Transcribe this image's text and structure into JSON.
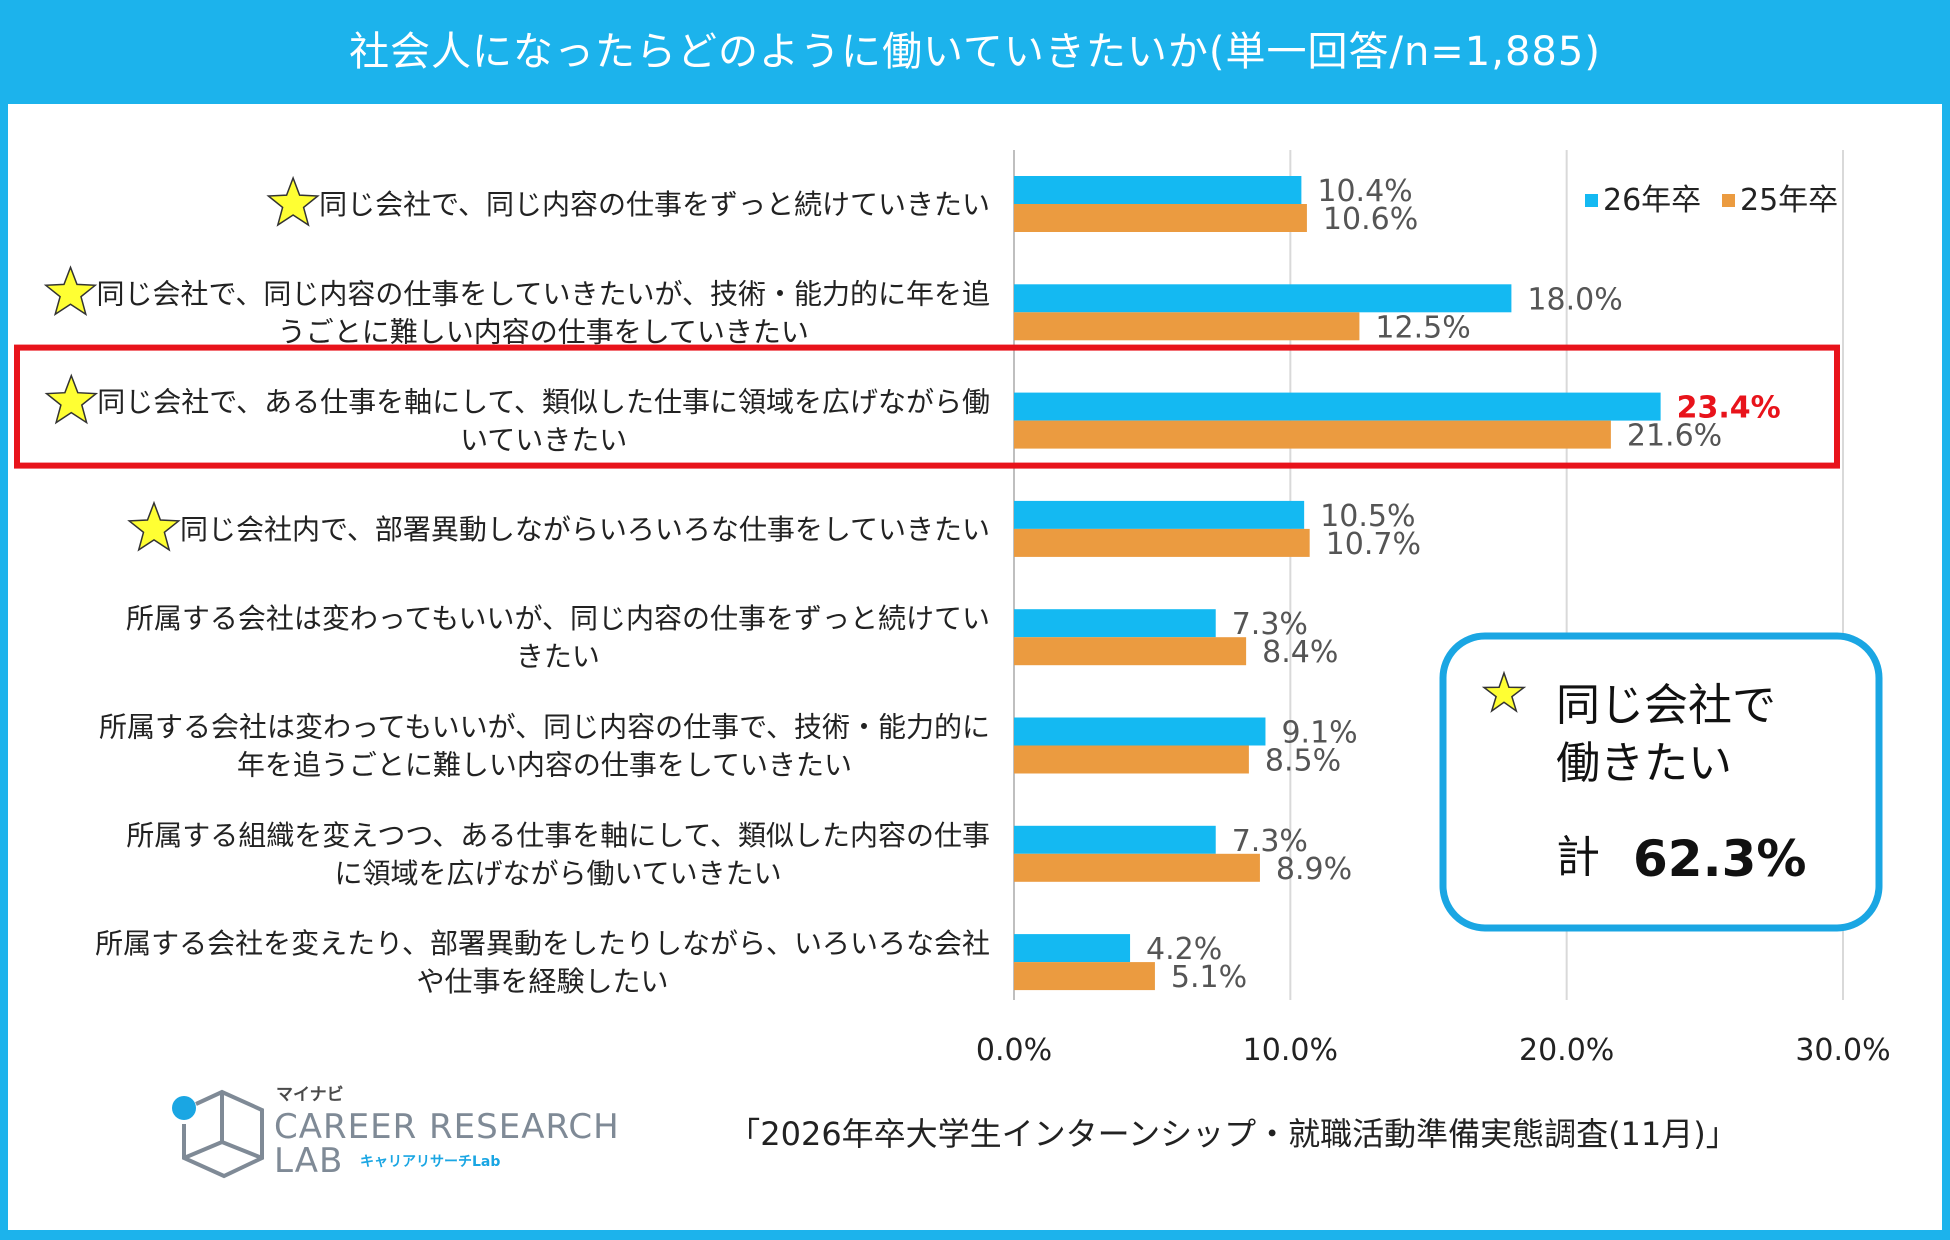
{
  "title": "社会人になったらどのように働いていきたいか(単一回答/n=1,885)",
  "chart_data": {
    "type": "bar",
    "orientation": "horizontal",
    "categories": [
      [
        "同じ会社で、同じ内容の仕事をずっと続けていきたい"
      ],
      [
        "同じ会社で、同じ内容の仕事をしていきたいが、技術・能力的に年を追",
        "うごとに難しい内容の仕事をしていきたい"
      ],
      [
        "同じ会社で、ある仕事を軸にして、類似した仕事に領域を広げながら働",
        "いていきたい"
      ],
      [
        "同じ会社内で、部署異動しながらいろいろな仕事をしていきたい"
      ],
      [
        "所属する会社は変わってもいいが、同じ内容の仕事をずっと続けてい",
        "きたい"
      ],
      [
        "所属する会社は変わってもいいが、同じ内容の仕事で、技術・能力的に",
        "年を追うごとに難しい内容の仕事をしていきたい"
      ],
      [
        "所属する組織を変えつつ、ある仕事を軸にして、類似した内容の仕事",
        "に領域を広げながら働いていきたい"
      ],
      [
        "所属する会社を変えたり、部署異動をしたりしながら、いろいろな会社",
        "や仕事を経験したい"
      ]
    ],
    "starred": [
      true,
      true,
      true,
      true,
      false,
      false,
      false,
      false
    ],
    "highlighted_index": 2,
    "series": [
      {
        "name": "26年卒",
        "color": "#14b9f2",
        "values": [
          10.4,
          18.0,
          23.4,
          10.5,
          7.3,
          9.1,
          7.3,
          4.2
        ]
      },
      {
        "name": "25年卒",
        "color": "#eb9b40",
        "values": [
          10.6,
          12.5,
          21.6,
          10.7,
          8.4,
          8.5,
          8.9,
          5.1
        ]
      }
    ],
    "xlim": [
      0,
      30
    ],
    "xticks": [
      "0.0%",
      "10.0%",
      "20.0%",
      "30.0%"
    ],
    "value_suffix": "%",
    "legend": "top-right"
  },
  "callout": {
    "line1": "同じ会社で",
    "line2": "働きたい",
    "total_label": "計",
    "total_value": "62.3%"
  },
  "logo": {
    "small": "マイナビ",
    "line1": "CAREER RESEARCH",
    "line2": "LAB",
    "jp": "キャリアリサーチLab"
  },
  "source": "「2026年卒大学生インターンシップ・就職活動準備実態調査(11月)」",
  "colors": {
    "frame": "#1cb3ec",
    "highlight_border": "#e8131b",
    "star_fill": "#ffff33",
    "callout_border": "#1aa6e3"
  }
}
